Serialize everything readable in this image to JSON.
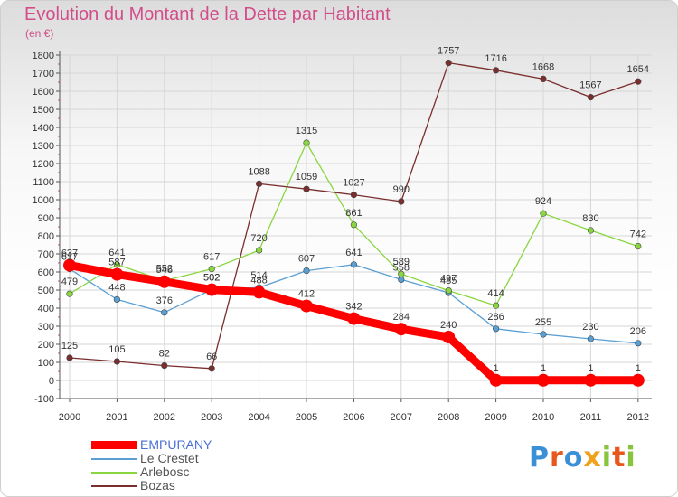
{
  "title": "Evolution du Montant de la Dette par Habitant",
  "subtitle": "(en €)",
  "chart_data": {
    "type": "line",
    "x": [
      "2000",
      "2001",
      "2002",
      "2003",
      "2004",
      "2005",
      "2006",
      "2007",
      "2008",
      "2009",
      "2010",
      "2011",
      "2012"
    ],
    "ylim": [
      -100,
      1800
    ],
    "yticks": [
      -100,
      0,
      100,
      200,
      300,
      400,
      500,
      600,
      700,
      800,
      900,
      1000,
      1100,
      1200,
      1300,
      1400,
      1500,
      1600,
      1700,
      1800
    ],
    "grid": true,
    "legend_position": "bottom-left",
    "series": [
      {
        "name": "EMPURANY",
        "color": "#ff0000",
        "values": [
          637,
          587,
          546,
          502,
          488,
          412,
          342,
          284,
          240,
          1,
          1,
          1,
          1
        ]
      },
      {
        "name": "Le Crestet",
        "color": "#5a9fd4",
        "values": [
          617,
          448,
          376,
          502,
          514,
          607,
          641,
          558,
          485,
          286,
          255,
          230,
          206
        ]
      },
      {
        "name": "Arlebosc",
        "color": "#8ad640",
        "values": [
          479,
          641,
          552,
          617,
          720,
          1315,
          861,
          589,
          497,
          414,
          924,
          830,
          742
        ]
      },
      {
        "name": "Bozas",
        "color": "#7a2e2e",
        "values": [
          125,
          105,
          82,
          66,
          1088,
          1059,
          1027,
          990,
          1757,
          1716,
          1668,
          1567,
          1654
        ]
      }
    ]
  },
  "logo": {
    "letters": [
      "P",
      "r",
      "o",
      "x",
      "i",
      "t",
      "i"
    ],
    "colors": [
      "#3b8fd6",
      "#e8571e",
      "#3b8fd6",
      "#f0a21c",
      "#8ac43f",
      "#e8571e",
      "#8ac43f"
    ]
  }
}
